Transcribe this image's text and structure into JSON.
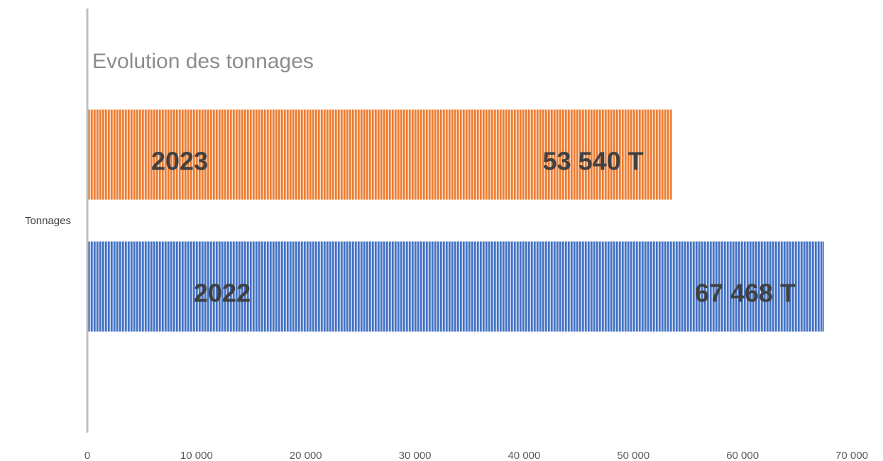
{
  "chart_data": {
    "type": "bar",
    "orientation": "horizontal",
    "title": "Evolution des tonnages",
    "categories": [
      "Tonnages"
    ],
    "series": [
      {
        "name": "2023",
        "color": "#ed7d31",
        "values": [
          53540
        ],
        "value_labels": [
          "53 540 T"
        ]
      },
      {
        "name": "2022",
        "color": "#4472c4",
        "values": [
          67468
        ],
        "value_labels": [
          "67 468 T"
        ]
      }
    ],
    "xlim": [
      0,
      70000
    ],
    "xticks": [
      0,
      {
        "value": 10000,
        "label": "10 000"
      },
      {
        "value": 20000,
        "label": "20 000"
      },
      {
        "value": 30000,
        "label": "30 000"
      },
      {
        "value": 40000,
        "label": "40 000"
      },
      {
        "value": 50000,
        "label": "50 000"
      },
      {
        "value": 60000,
        "label": "60 000"
      },
      {
        "value": 70000,
        "label": "70 000"
      }
    ],
    "grid": false
  }
}
